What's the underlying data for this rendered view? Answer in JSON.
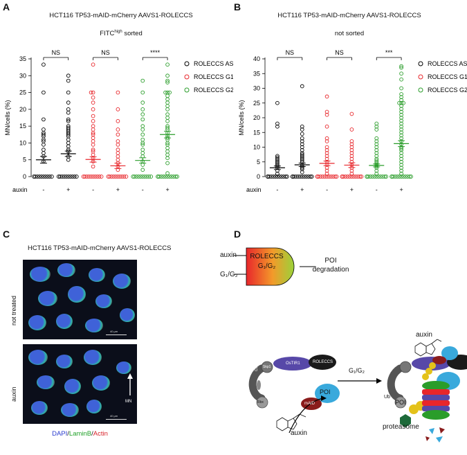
{
  "panels": {
    "a": {
      "letter": "A",
      "title": "HCT116 TP53-mAID-mCherry AAVS1-ROLECCS",
      "subtitle_main": "FITC",
      "subtitle_sup": "high",
      "subtitle_rest": " sorted"
    },
    "b": {
      "letter": "B",
      "title": "HCT116 TP53-mAID-mCherry AAVS1-ROLECCS",
      "subtitle": "not sorted"
    },
    "c": {
      "letter": "C",
      "title": "HCT116 TP53-mAID-mCherry AAVS1-ROLECCS",
      "label_top": "not treated",
      "label_bottom": "auxin",
      "scale_top": "40 µm",
      "scale_bottom": "40 µm",
      "mn_label": "MN",
      "stain_dapi": "DAPI",
      "stain_sep1": "/",
      "stain_laminb": "LaminB",
      "stain_sep2": "/",
      "stain_actin": "Actin"
    },
    "d": {
      "letter": "D",
      "auxin_in": "auxin",
      "phase_in": "G₁/G₂",
      "roleccs_title": "ROLECCS",
      "roleccs_phase": "G₁/G₂",
      "poi_deg_1": "POI",
      "poi_deg_2": "degradation",
      "cul": "Cul1",
      "skp": "Skp1",
      "ostir": "OsTIR1",
      "roleccs": "ROLECCS",
      "rbx": "Rbx",
      "poi": "POI",
      "maid": "mAID",
      "arrow_phase": "G₁/G₂",
      "auxin_below": "auxin",
      "auxin_top": "auxin",
      "ub": "Ub",
      "proteasome": "proteasome"
    }
  },
  "chart_data": [
    {
      "type": "scatter",
      "title": "HCT116 TP53-mAID-mCherry AAVS1-ROLECCS",
      "ylabel": "MN/cells (%)",
      "ylim": [
        0,
        35
      ],
      "yticks": [
        0,
        5,
        10,
        15,
        20,
        25,
        30,
        35
      ],
      "xlabel_row": "auxin",
      "categories": [
        "-",
        "+",
        "-",
        "+",
        "-",
        "+"
      ],
      "significance": [
        "NS",
        "NS",
        "****"
      ],
      "series": [
        {
          "name": "ROLECCS AS",
          "color": "#000000",
          "groups": [
            {
              "mean": 5.0,
              "sem": 1.0,
              "values": [
                0,
                0,
                0,
                0,
                0,
                0,
                0,
                0,
                0,
                0,
                4.5,
                6,
                7,
                8,
                9.5,
                10.5,
                11,
                12,
                12.5,
                13,
                14,
                17,
                25,
                33.3
              ]
            },
            {
              "mean": 6.8,
              "sem": 0.8,
              "values": [
                0,
                0,
                0,
                0,
                0,
                0,
                0,
                0,
                0,
                0,
                5,
                6,
                7.5,
                8,
                9,
                10,
                11,
                12,
                12.5,
                13,
                13.5,
                14,
                14.5,
                15,
                16.5,
                17,
                19,
                20,
                22,
                25,
                28.5,
                30
              ]
            }
          ]
        },
        {
          "name": "ROLECCS G1",
          "color": "#e8262b",
          "groups": [
            {
              "mean": 5.1,
              "sem": 0.8,
              "values": [
                0,
                0,
                0,
                0,
                0,
                0,
                0,
                0,
                0,
                0,
                3,
                4.5,
                5.5,
                6.5,
                7.5,
                8,
                9.5,
                10.5,
                11.5,
                12.5,
                13,
                14,
                15,
                16.5,
                18,
                20,
                22,
                23.5,
                25,
                25,
                33.3
              ]
            },
            {
              "mean": 3.2,
              "sem": 0.8,
              "values": [
                0,
                0,
                0,
                0,
                0,
                0,
                0,
                0,
                0,
                0,
                2,
                3,
                4,
                5,
                6,
                7,
                8,
                9.5,
                10.5,
                12.5,
                14,
                16.5,
                20,
                25
              ]
            }
          ]
        },
        {
          "name": "ROLECCS G2",
          "color": "#2a9d2a",
          "groups": [
            {
              "mean": 4.8,
              "sem": 0.8,
              "values": [
                0,
                0,
                0,
                0,
                0,
                0,
                0,
                0,
                0,
                0,
                2,
                3.5,
                4.5,
                6,
                7,
                8,
                9.5,
                10,
                11,
                12.5,
                14,
                15,
                17,
                18.5,
                20,
                22,
                25,
                28.5
              ]
            },
            {
              "mean": 12.5,
              "sem": 1.0,
              "values": [
                0,
                0,
                0,
                0,
                0,
                0,
                0,
                0,
                0,
                0,
                0,
                0,
                1,
                4,
                5.5,
                6.5,
                7.5,
                8.5,
                9.5,
                10,
                11,
                11.5,
                12,
                13,
                14,
                14.5,
                15,
                16.5,
                17.5,
                18.5,
                20,
                21,
                22,
                23,
                24,
                25,
                25,
                25,
                28,
                28.5,
                30,
                33.3
              ]
            }
          ]
        }
      ]
    },
    {
      "type": "scatter",
      "title": "HCT116 TP53-mAID-mCherry AAVS1-ROLECCS",
      "ylabel": "MN/cells (%)",
      "ylim": [
        0,
        40
      ],
      "yticks": [
        0,
        5,
        10,
        15,
        20,
        25,
        30,
        35,
        40
      ],
      "xlabel_row": "auxin",
      "categories": [
        "-",
        "+",
        "-",
        "+",
        "-",
        "+"
      ],
      "significance": [
        "NS",
        "NS",
        "***"
      ],
      "series": [
        {
          "name": "ROLECCS AS",
          "color": "#000000",
          "groups": [
            {
              "mean": 3.0,
              "sem": 0.6,
              "values": [
                0,
                0,
                0,
                0,
                0,
                0,
                0,
                0,
                0,
                0,
                0,
                0,
                1,
                2,
                3,
                3.5,
                4,
                4.5,
                5,
                5.5,
                6,
                6.5,
                7,
                17,
                18,
                25
              ]
            },
            {
              "mean": 4.0,
              "sem": 0.6,
              "values": [
                0,
                0,
                0,
                0,
                0,
                0,
                0,
                0,
                0,
                0,
                0,
                0,
                1.5,
                2.5,
                3,
                3.5,
                4,
                5,
                5.5,
                6,
                6.5,
                7,
                7.5,
                8,
                9,
                10,
                11,
                12,
                13,
                14.5,
                16,
                17,
                30.7
              ]
            }
          ]
        },
        {
          "name": "ROLECCS G1",
          "color": "#e8262b",
          "groups": [
            {
              "mean": 4.5,
              "sem": 0.8,
              "values": [
                0,
                0,
                0,
                0,
                0,
                0,
                0,
                0,
                0,
                0,
                0,
                0,
                1,
                2,
                3,
                4,
                5,
                6,
                7,
                8,
                9,
                10,
                12,
                13,
                17,
                21,
                22,
                27.2
              ]
            },
            {
              "mean": 3.9,
              "sem": 0.8,
              "values": [
                0,
                0,
                0,
                0,
                0,
                0,
                0,
                0,
                0,
                0,
                0,
                0,
                1,
                2,
                3,
                4,
                5,
                6,
                7,
                8,
                9,
                10,
                11,
                12,
                16,
                21.3
              ]
            }
          ]
        },
        {
          "name": "ROLECCS G2",
          "color": "#2a9d2a",
          "groups": [
            {
              "mean": 3.8,
              "sem": 0.5,
              "values": [
                0,
                0,
                0,
                0,
                0,
                0,
                0,
                0,
                0,
                0,
                0,
                0,
                1,
                2,
                3,
                3.5,
                4,
                4.5,
                5,
                5.5,
                6,
                7,
                8,
                9,
                10,
                11,
                12,
                13,
                16,
                17,
                18
              ]
            },
            {
              "mean": 11.2,
              "sem": 1.0,
              "values": [
                0,
                0,
                0,
                0,
                0,
                0,
                0,
                0,
                0,
                0,
                0,
                0,
                1,
                2,
                3,
                4,
                5,
                6,
                7,
                8,
                9,
                9.5,
                10,
                11,
                12,
                13,
                14,
                15,
                16,
                17,
                18,
                19,
                20,
                21,
                22,
                23,
                24,
                25,
                25,
                25,
                26,
                27,
                28,
                30,
                33,
                35,
                37,
                37.5
              ]
            }
          ]
        }
      ]
    }
  ]
}
